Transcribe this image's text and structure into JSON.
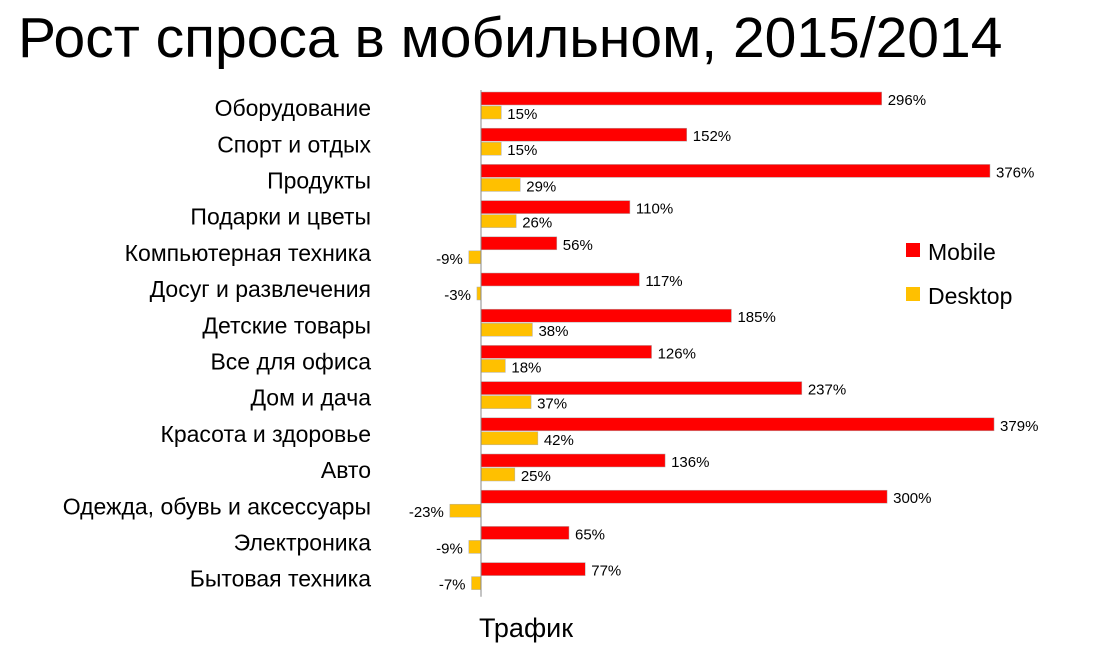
{
  "title": "Рост спроса в мобильном, 2015/2014",
  "chart_data": {
    "type": "bar",
    "orientation": "horizontal",
    "title": "Рост спроса в мобильном, 2015/2014",
    "xlabel": "Трафик",
    "ylabel": "",
    "categories": [
      "Оборудование",
      "Спорт и отдых",
      "Продукты",
      "Подарки и цветы",
      "Компьютерная техника",
      "Досуг и развлечения",
      "Детские товары",
      "Все для офиса",
      "Дом и дача",
      "Красота и здоровье",
      "Авто",
      "Одежда, обувь и аксессуары",
      "Электроника",
      "Бытовая техника"
    ],
    "series": [
      {
        "name": "Mobile",
        "color": "#ff0000",
        "values": [
          296,
          152,
          376,
          110,
          56,
          117,
          185,
          126,
          237,
          379,
          136,
          300,
          65,
          77
        ],
        "labels": [
          "296%",
          "152%",
          "376%",
          "110%",
          "56%",
          "117%",
          "185%",
          "126%",
          "237%",
          "379%",
          "136%",
          "300%",
          "65%",
          "77%"
        ]
      },
      {
        "name": "Desktop",
        "color": "#ffc000",
        "values": [
          15,
          15,
          29,
          26,
          -9,
          -3,
          38,
          18,
          37,
          42,
          25,
          -23,
          -9,
          -7
        ],
        "labels": [
          "15%",
          "15%",
          "29%",
          "26%",
          "-9%",
          "-3%",
          "38%",
          "18%",
          "37%",
          "42%",
          "25%",
          "-23%",
          "-9%",
          "-7%"
        ]
      }
    ],
    "xlim": [
      -30,
      400
    ],
    "value_unit": "%",
    "grid": false,
    "legend": "right"
  }
}
